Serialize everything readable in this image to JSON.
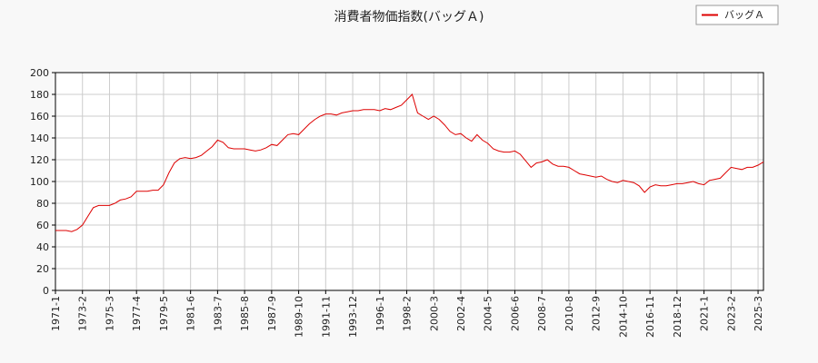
{
  "chart_data": {
    "type": "line",
    "title": "消費者物価指数(バッグＡ)",
    "categories": [
      "1971-1",
      null,
      null,
      null,
      null,
      "1973-2",
      null,
      null,
      null,
      null,
      "1975-3",
      null,
      null,
      null,
      null,
      "1977-4",
      null,
      null,
      null,
      null,
      "1979-5",
      null,
      null,
      null,
      null,
      "1981-6",
      null,
      null,
      null,
      null,
      "1983-7",
      null,
      null,
      null,
      null,
      "1985-8",
      null,
      null,
      null,
      null,
      "1987-9",
      null,
      null,
      null,
      null,
      "1989-10",
      null,
      null,
      null,
      null,
      "1991-11",
      null,
      null,
      null,
      null,
      "1993-12",
      null,
      null,
      null,
      null,
      "1996-1",
      null,
      null,
      null,
      null,
      "1998-2",
      null,
      null,
      null,
      null,
      "2000-3",
      null,
      null,
      null,
      null,
      "2002-4",
      null,
      null,
      null,
      null,
      "2004-5",
      null,
      null,
      null,
      null,
      "2006-6",
      null,
      null,
      null,
      null,
      "2008-7",
      null,
      null,
      null,
      null,
      "2010-8",
      null,
      null,
      null,
      null,
      "2012-9",
      null,
      null,
      null,
      null,
      "2014-10",
      null,
      null,
      null,
      null,
      "2016-11",
      null,
      null,
      null,
      null,
      "2018-12",
      null,
      null,
      null,
      null,
      "2021-1",
      null,
      null,
      null,
      null,
      "2023-2",
      null,
      null,
      null,
      null,
      "2025-3",
      null
    ],
    "series": [
      {
        "name": "バッグＡ",
        "color": "#dd0000",
        "values": [
          55,
          55,
          55,
          54,
          56,
          60,
          68,
          76,
          78,
          78,
          78,
          80,
          83,
          84,
          86,
          91,
          91,
          91,
          92,
          92,
          97,
          108,
          117,
          121,
          122,
          121,
          122,
          124,
          128,
          132,
          138,
          136,
          131,
          130,
          130,
          130,
          129,
          128,
          129,
          131,
          134,
          133,
          138,
          143,
          144,
          143,
          148,
          153,
          157,
          160,
          162,
          162,
          161,
          163,
          164,
          165,
          165,
          166,
          166,
          166,
          165,
          167,
          166,
          168,
          170,
          175,
          180,
          163,
          160,
          157,
          160,
          157,
          152,
          146,
          143,
          144,
          140,
          137,
          143,
          138,
          135,
          130,
          128,
          127,
          127,
          128,
          125,
          119,
          113,
          117,
          118,
          120,
          116,
          114,
          114,
          113,
          110,
          107,
          106,
          105,
          104,
          105,
          102,
          100,
          99,
          101,
          100,
          99,
          96,
          90,
          95,
          97,
          96,
          96,
          97,
          98,
          98,
          99,
          100,
          98,
          97,
          101,
          102,
          103,
          108,
          113,
          112,
          111,
          113,
          113,
          115,
          118
        ]
      }
    ],
    "ylim": [
      0,
      200
    ],
    "yticks": [
      0,
      20,
      40,
      60,
      80,
      100,
      120,
      140,
      160,
      180,
      200
    ],
    "grid": true,
    "legend": "upper right"
  }
}
